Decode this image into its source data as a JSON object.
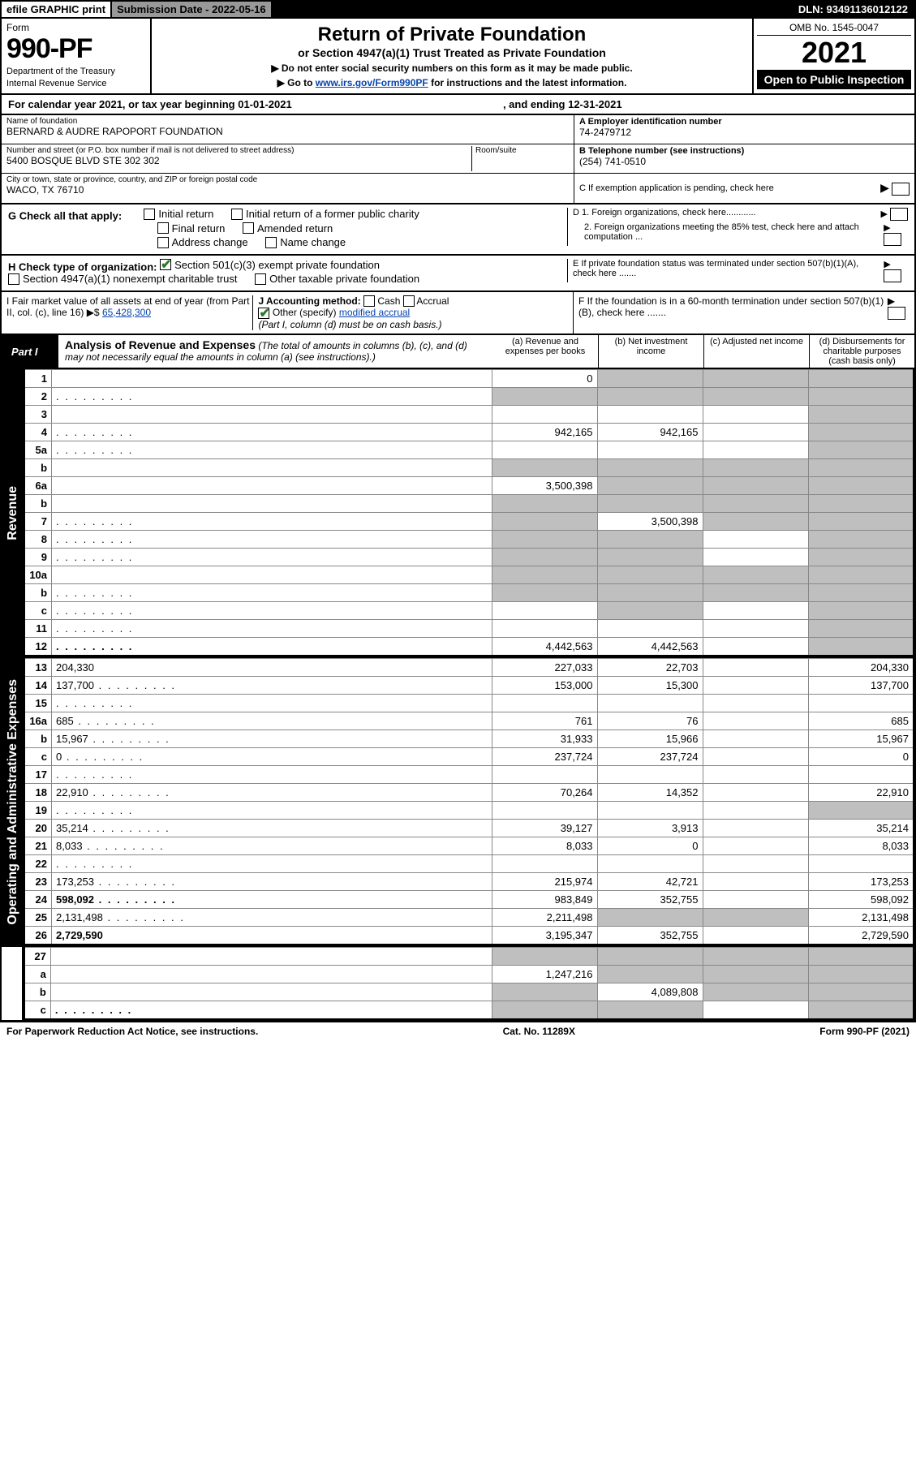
{
  "topbar": {
    "efile": "efile GRAPHIC print",
    "subdate_label": "Submission Date - ",
    "subdate": "2022-05-16",
    "dln_label": "DLN: ",
    "dln": "93491136012122"
  },
  "header": {
    "form_word": "Form",
    "form_number": "990-PF",
    "dept": "Department of the Treasury",
    "irs": "Internal Revenue Service",
    "title": "Return of Private Foundation",
    "subtitle": "or Section 4947(a)(1) Trust Treated as Private Foundation",
    "instr1": "▶ Do not enter social security numbers on this form as it may be made public.",
    "instr2_pre": "▶ Go to ",
    "instr2_link": "www.irs.gov/Form990PF",
    "instr2_post": " for instructions and the latest information.",
    "omb": "OMB No. 1545-0047",
    "year": "2021",
    "open": "Open to Public Inspection"
  },
  "calyear": {
    "text": "For calendar year 2021, or tax year beginning 01-01-2021",
    "end": ", and ending 12-31-2021"
  },
  "entity": {
    "name_label": "Name of foundation",
    "name": "BERNARD & AUDRE RAPOPORT FOUNDATION",
    "addr_label": "Number and street (or P.O. box number if mail is not delivered to street address)",
    "addr": "5400 BOSQUE BLVD STE 302 302",
    "room_label": "Room/suite",
    "city_label": "City or town, state or province, country, and ZIP or foreign postal code",
    "city": "WACO, TX  76710",
    "ein_label": "A Employer identification number",
    "ein": "74-2479712",
    "phone_label": "B Telephone number (see instructions)",
    "phone": "(254) 741-0510",
    "c_label": "C If exemption application is pending, check here",
    "d1": "D 1. Foreign organizations, check here............",
    "d2": "2. Foreign organizations meeting the 85% test, check here and attach computation ...",
    "e": "E  If private foundation status was terminated under section 507(b)(1)(A), check here .......",
    "f": "F  If the foundation is in a 60-month termination under section 507(b)(1)(B), check here ......."
  },
  "checks": {
    "g_label": "G Check all that apply:",
    "initial": "Initial return",
    "initial_former": "Initial return of a former public charity",
    "final": "Final return",
    "amended": "Amended return",
    "addr_change": "Address change",
    "name_change": "Name change",
    "h_label": "H Check type of organization:",
    "h_501c3": "Section 501(c)(3) exempt private foundation",
    "h_4947": "Section 4947(a)(1) nonexempt charitable trust",
    "h_other": "Other taxable private foundation",
    "i_label": "I Fair market value of all assets at end of year (from Part II, col. (c), line 16) ▶$ ",
    "i_value": "65,428,300",
    "j_label": "J Accounting method:",
    "j_cash": "Cash",
    "j_accrual": "Accrual",
    "j_other": "Other (specify)",
    "j_other_val": "modified accrual",
    "j_note": "(Part I, column (d) must be on cash basis.)"
  },
  "part1": {
    "label": "Part I",
    "title": "Analysis of Revenue and Expenses",
    "note": " (The total of amounts in columns (b), (c), and (d) may not necessarily equal the amounts in column (a) (see instructions).)",
    "cols": {
      "a": "(a) Revenue and expenses per books",
      "b": "(b) Net investment income",
      "c": "(c) Adjusted net income",
      "d": "(d) Disbursements for charitable purposes (cash basis only)"
    }
  },
  "sides": {
    "revenue": "Revenue",
    "expenses": "Operating and Administrative Expenses"
  },
  "rows": [
    {
      "n": "1",
      "d": "",
      "a": "0",
      "b": "",
      "c": "",
      "sb": true,
      "sc": true,
      "sd": true
    },
    {
      "n": "2",
      "d": "",
      "dots": true,
      "a": "",
      "b": "",
      "c": "",
      "sa": true,
      "sb": true,
      "sc": true,
      "sd": true
    },
    {
      "n": "3",
      "d": "",
      "a": "",
      "b": "",
      "c": "",
      "sd": true
    },
    {
      "n": "4",
      "d": "",
      "dots": true,
      "a": "942,165",
      "b": "942,165",
      "c": "",
      "sd": true
    },
    {
      "n": "5a",
      "d": "",
      "dots": true,
      "a": "",
      "b": "",
      "c": "",
      "sd": true
    },
    {
      "n": "b",
      "d": "",
      "a": "",
      "b": "",
      "c": "",
      "sa": true,
      "sb": true,
      "sc": true,
      "sd": true
    },
    {
      "n": "6a",
      "d": "",
      "a": "3,500,398",
      "b": "",
      "c": "",
      "sb": true,
      "sc": true,
      "sd": true
    },
    {
      "n": "b",
      "d": "",
      "a": "",
      "b": "",
      "c": "",
      "sa": true,
      "sb": true,
      "sc": true,
      "sd": true
    },
    {
      "n": "7",
      "d": "",
      "dots": true,
      "a": "",
      "b": "3,500,398",
      "c": "",
      "sa": true,
      "sc": true,
      "sd": true
    },
    {
      "n": "8",
      "d": "",
      "dots": true,
      "a": "",
      "b": "",
      "c": "",
      "sa": true,
      "sb": true,
      "sd": true
    },
    {
      "n": "9",
      "d": "",
      "dots": true,
      "a": "",
      "b": "",
      "c": "",
      "sa": true,
      "sb": true,
      "sd": true
    },
    {
      "n": "10a",
      "d": "",
      "a": "",
      "b": "",
      "c": "",
      "sa": true,
      "sb": true,
      "sc": true,
      "sd": true
    },
    {
      "n": "b",
      "d": "",
      "dots": true,
      "a": "",
      "b": "",
      "c": "",
      "sa": true,
      "sb": true,
      "sc": true,
      "sd": true
    },
    {
      "n": "c",
      "d": "",
      "dots": true,
      "a": "",
      "b": "",
      "c": "",
      "sb": true,
      "sd": true
    },
    {
      "n": "11",
      "d": "",
      "dots": true,
      "a": "",
      "b": "",
      "c": "",
      "sd": true
    },
    {
      "n": "12",
      "d": "",
      "dots": true,
      "bold": true,
      "a": "4,442,563",
      "b": "4,442,563",
      "c": "",
      "sd": true
    }
  ],
  "rows_exp": [
    {
      "n": "13",
      "d": "204,330",
      "a": "227,033",
      "b": "22,703",
      "c": ""
    },
    {
      "n": "14",
      "d": "137,700",
      "dots": true,
      "a": "153,000",
      "b": "15,300",
      "c": ""
    },
    {
      "n": "15",
      "d": "",
      "dots": true,
      "a": "",
      "b": "",
      "c": ""
    },
    {
      "n": "16a",
      "d": "685",
      "dots": true,
      "a": "761",
      "b": "76",
      "c": ""
    },
    {
      "n": "b",
      "d": "15,967",
      "dots": true,
      "a": "31,933",
      "b": "15,966",
      "c": ""
    },
    {
      "n": "c",
      "d": "0",
      "dots": true,
      "a": "237,724",
      "b": "237,724",
      "c": ""
    },
    {
      "n": "17",
      "d": "",
      "dots": true,
      "a": "",
      "b": "",
      "c": ""
    },
    {
      "n": "18",
      "d": "22,910",
      "dots": true,
      "a": "70,264",
      "b": "14,352",
      "c": ""
    },
    {
      "n": "19",
      "d": "",
      "dots": true,
      "a": "",
      "b": "",
      "c": "",
      "sd": true
    },
    {
      "n": "20",
      "d": "35,214",
      "dots": true,
      "a": "39,127",
      "b": "3,913",
      "c": ""
    },
    {
      "n": "21",
      "d": "8,033",
      "dots": true,
      "a": "8,033",
      "b": "0",
      "c": ""
    },
    {
      "n": "22",
      "d": "",
      "dots": true,
      "a": "",
      "b": "",
      "c": ""
    },
    {
      "n": "23",
      "d": "173,253",
      "dots": true,
      "a": "215,974",
      "b": "42,721",
      "c": ""
    },
    {
      "n": "24",
      "d": "598,092",
      "dots": true,
      "bold": true,
      "a": "983,849",
      "b": "352,755",
      "c": ""
    },
    {
      "n": "25",
      "d": "2,131,498",
      "dots": true,
      "a": "2,211,498",
      "b": "",
      "c": "",
      "sb": true,
      "sc": true
    },
    {
      "n": "26",
      "d": "2,729,590",
      "bold": true,
      "a": "3,195,347",
      "b": "352,755",
      "c": ""
    }
  ],
  "rows_net": [
    {
      "n": "27",
      "d": "",
      "a": "",
      "b": "",
      "c": "",
      "sa": true,
      "sb": true,
      "sc": true,
      "sd": true
    },
    {
      "n": "a",
      "d": "",
      "bold": true,
      "a": "1,247,216",
      "b": "",
      "c": "",
      "sb": true,
      "sc": true,
      "sd": true
    },
    {
      "n": "b",
      "d": "",
      "bold": true,
      "a": "",
      "b": "4,089,808",
      "c": "",
      "sa": true,
      "sc": true,
      "sd": true
    },
    {
      "n": "c",
      "d": "",
      "dots": true,
      "bold": true,
      "a": "",
      "b": "",
      "c": "",
      "sa": true,
      "sb": true,
      "sd": true
    }
  ],
  "footer": {
    "left": "For Paperwork Reduction Act Notice, see instructions.",
    "mid": "Cat. No. 11289X",
    "right": "Form 990-PF (2021)"
  }
}
